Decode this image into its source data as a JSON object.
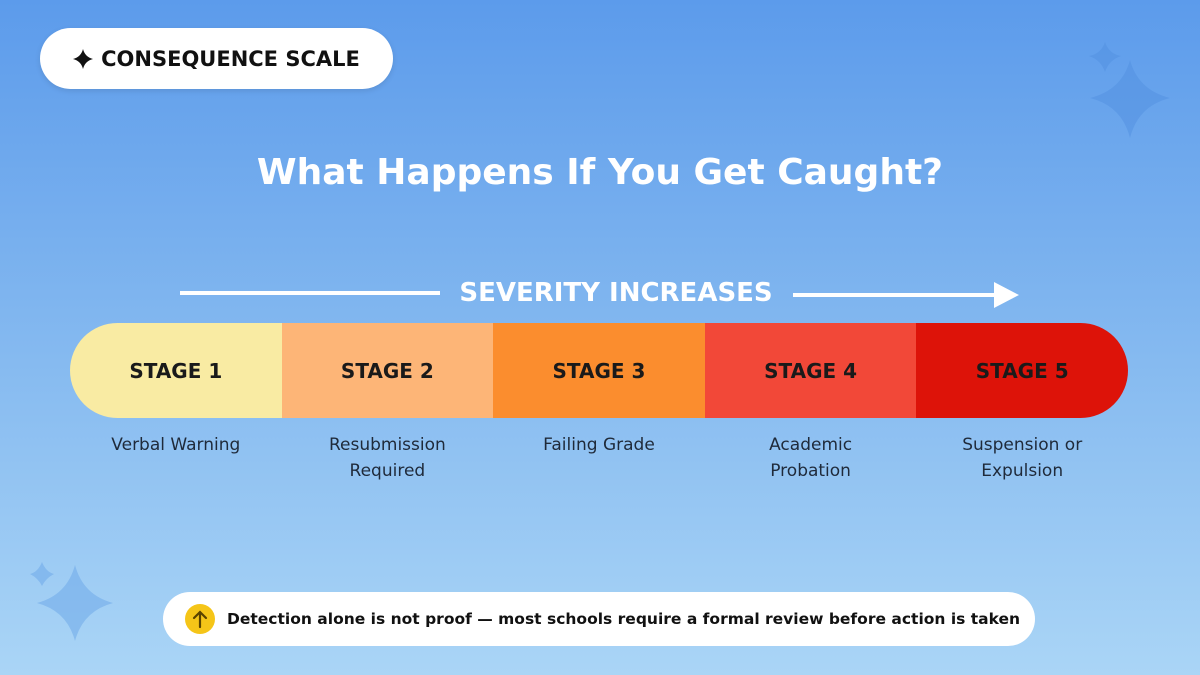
{
  "badge": {
    "label": "CONSEQUENCE SCALE"
  },
  "title": "What Happens If You Get Caught?",
  "scale": {
    "label": "SEVERITY INCREASES",
    "stages": [
      {
        "label": "STAGE 1",
        "description": [
          "Verbal Warning"
        ],
        "color": "#f9eba3"
      },
      {
        "label": "STAGE 2",
        "description": [
          "Resubmission",
          "Required"
        ],
        "color": "#fdb577"
      },
      {
        "label": "STAGE 3",
        "description": [
          "Failing Grade"
        ],
        "color": "#fb8d2e"
      },
      {
        "label": "STAGE 4",
        "description": [
          "Academic",
          "Probation"
        ],
        "color": "#f24838"
      },
      {
        "label": "STAGE 5",
        "description": [
          "Suspension or",
          "Expulsion"
        ],
        "color": "#dd1309"
      }
    ]
  },
  "note": "Detection alone is not proof — most schools require a formal review before action is taken"
}
